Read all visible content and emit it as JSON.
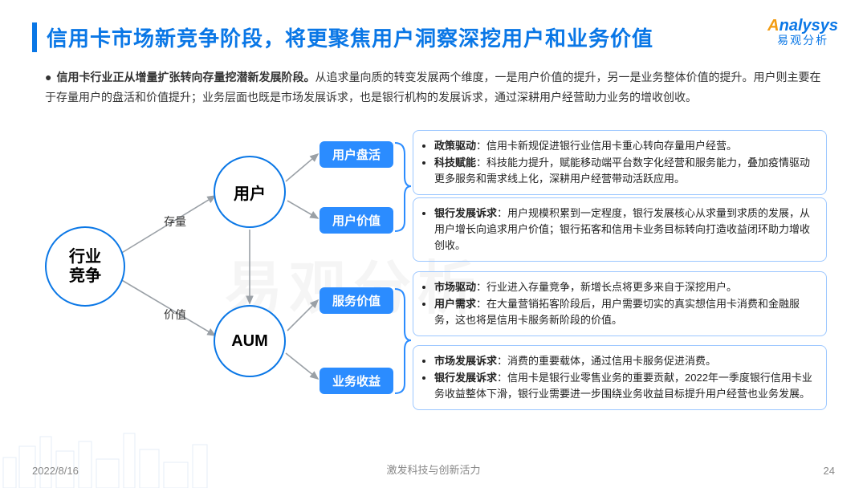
{
  "header": {
    "title": "信用卡市场新竞争阶段，将更聚焦用户洞察深挖用户和业务价值",
    "accent_color": "#0a77e6"
  },
  "logo": {
    "brand_prefix": "A",
    "brand_rest": "nalysys",
    "brand_cn": "易观分析"
  },
  "intro": {
    "bold_lead": "信用卡行业正从增量扩张转向存量挖潜新发展阶段。",
    "rest": "从追求量向质的转变发展两个维度，一是用户价值的提升，另一是业务整体价值的提升。用户则主要在于存量用户的盘活和价值提升；业务层面也既是市场发展诉求，也是银行机构的发展诉求，通过深耕用户经营助力业务的增收创收。"
  },
  "diagram": {
    "type": "flowchart",
    "node_border_color": "#0a77e6",
    "tag_bg": "#2b8cff",
    "tag_fg": "#ffffff",
    "desc_border": "#9cc7ff",
    "arrow_color": "#9aa0a6",
    "nodes": {
      "root": "行业竞争",
      "user": "用户",
      "aum": "AUM"
    },
    "edge_labels": {
      "root_user": "存量",
      "root_aum": "价值"
    },
    "tags": {
      "t1": "用户盘活",
      "t2": "用户价值",
      "t3": "服务价值",
      "t4": "业务收益"
    },
    "desc": {
      "d1": [
        {
          "k": "政策驱动",
          "v": "：信用卡新规促进银行业信用卡重心转向存量用户经营。"
        },
        {
          "k": "科技赋能",
          "v": "：科技能力提升，赋能移动端平台数字化经营和服务能力，叠加疫情驱动更多服务和需求线上化，深耕用户经营带动活跃应用。"
        }
      ],
      "d2": [
        {
          "k": "银行发展诉求",
          "v": "：用户规模积累到一定程度，银行发展核心从求量到求质的发展，从用户增长向追求用户价值；银行拓客和信用卡业务目标转向打造收益闭环助力增收创收。"
        }
      ],
      "d3": [
        {
          "k": "市场驱动",
          "v": "：行业进入存量竞争，新增长点将更多来自于深挖用户。"
        },
        {
          "k": "用户需求",
          "v": "：在大量营销拓客阶段后，用户需要切实的真实想信用卡消费和金融服务，这也将是信用卡服务新阶段的价值。"
        }
      ],
      "d4": [
        {
          "k": "市场发展诉求",
          "v": "：消费的重要载体，通过信用卡服务促进消费。"
        },
        {
          "k": "银行发展诉求",
          "v": "：信用卡是银行业零售业务的重要贡献，2022年一季度银行信用卡业务收益整体下滑，银行业需要进一步围绕业务收益目标提升用户经营也业务发展。"
        }
      ]
    }
  },
  "footer": {
    "date": "2022/8/16",
    "mid": "激发科技与创新活力",
    "page": "24"
  },
  "watermark": "易观分析"
}
